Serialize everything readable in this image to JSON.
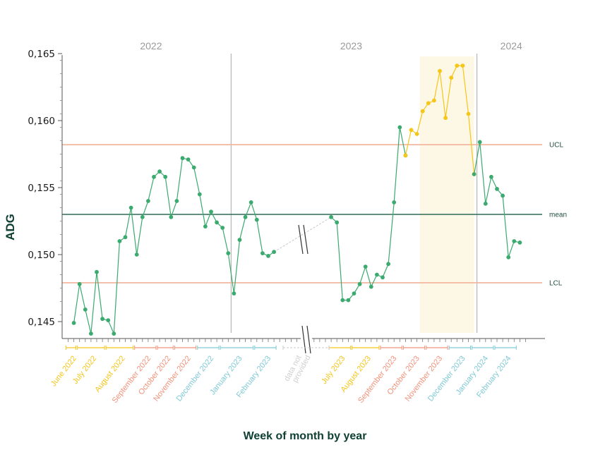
{
  "chart_data": {
    "type": "line",
    "title": "",
    "ylabel": "ADG",
    "xlabel": "Week of month by year",
    "ylim": [
      0.1438,
      0.165
    ],
    "y_ticks": [
      {
        "v": 0.145,
        "label": "0,145"
      },
      {
        "v": 0.15,
        "label": "0,150"
      },
      {
        "v": 0.155,
        "label": "0,155"
      },
      {
        "v": 0.16,
        "label": "0,160"
      },
      {
        "v": 0.165,
        "label": "0,165"
      }
    ],
    "years": [
      {
        "label": "2022",
        "center": 14.5
      },
      {
        "label": "2023",
        "center": 49.5
      },
      {
        "label": "2024",
        "center": 77.5
      }
    ],
    "year_dividers": [
      28.5,
      71.5
    ],
    "highlight_range": [
      61.5,
      71
    ],
    "reference_lines": [
      {
        "name": "UCL",
        "value": 0.1582,
        "color": "#f2b29a"
      },
      {
        "name": "mean",
        "value": 0.153,
        "color": "#2e6a55"
      },
      {
        "name": "LCL",
        "value": 0.1479,
        "color": "#f2b29a"
      }
    ],
    "gap": {
      "label": "data not provided",
      "from": 36,
      "to": 46
    },
    "months": [
      {
        "label": "June 2022",
        "start": 0,
        "end": 1,
        "color": "#f5c518"
      },
      {
        "label": "July 2022",
        "start": 2,
        "end": 6,
        "color": "#f5c518"
      },
      {
        "label": "August 2022",
        "start": 7,
        "end": 11,
        "color": "#f5c518"
      },
      {
        "label": "September 2022",
        "start": 12,
        "end": 15,
        "color": "#f0927a"
      },
      {
        "label": "October 2022",
        "start": 16,
        "end": 18,
        "color": "#f0927a"
      },
      {
        "label": "November 2022",
        "start": 19,
        "end": 22,
        "color": "#f0927a"
      },
      {
        "label": "December 2022",
        "start": 23,
        "end": 26,
        "color": "#7ec9d6"
      },
      {
        "label": "January 2023",
        "start": 27,
        "end": 32,
        "color": "#7ec9d6"
      },
      {
        "label": "February 2023",
        "start": 33,
        "end": 36,
        "color": "#7ec9d6"
      },
      {
        "label": "July 2023",
        "start": 46,
        "end": 49,
        "color": "#f5c518"
      },
      {
        "label": "August 2023",
        "start": 50,
        "end": 54,
        "color": "#f5c518"
      },
      {
        "label": "September 2023",
        "start": 55,
        "end": 58,
        "color": "#f0927a"
      },
      {
        "label": "October 2023",
        "start": 59,
        "end": 62,
        "color": "#f0927a"
      },
      {
        "label": "November 2023",
        "start": 63,
        "end": 66,
        "color": "#f0927a"
      },
      {
        "label": "December 2023",
        "start": 67,
        "end": 70,
        "color": "#7ec9d6"
      },
      {
        "label": "January 2024",
        "start": 71,
        "end": 74,
        "color": "#7ec9d6"
      },
      {
        "label": "February 2024",
        "start": 75,
        "end": 78,
        "color": "#7ec9d6"
      }
    ],
    "series": [
      {
        "color": "#3aaa6e",
        "points": [
          [
            1,
            0.1449
          ],
          [
            2,
            0.1478
          ],
          [
            3,
            0.1459
          ],
          [
            4,
            0.1441
          ],
          [
            5,
            0.1487
          ],
          [
            6,
            0.1452
          ],
          [
            7,
            0.1451
          ],
          [
            8,
            0.1441
          ],
          [
            9,
            0.151
          ],
          [
            10,
            0.1513
          ],
          [
            11,
            0.1535
          ],
          [
            12,
            0.15
          ],
          [
            13,
            0.1528
          ],
          [
            14,
            0.154
          ],
          [
            15,
            0.1558
          ],
          [
            16,
            0.1562
          ],
          [
            17,
            0.1558
          ],
          [
            18,
            0.1528
          ],
          [
            19,
            0.154
          ],
          [
            20,
            0.1572
          ],
          [
            21,
            0.1571
          ],
          [
            22,
            0.1565
          ],
          [
            23,
            0.1545
          ],
          [
            24,
            0.1521
          ],
          [
            25,
            0.1532
          ],
          [
            26,
            0.1524
          ],
          [
            27,
            0.152
          ],
          [
            28,
            0.1501
          ],
          [
            29,
            0.1471
          ],
          [
            30,
            0.1511
          ],
          [
            31,
            0.1528
          ],
          [
            32,
            0.1539
          ],
          [
            33,
            0.1526
          ],
          [
            34,
            0.1501
          ],
          [
            35,
            0.1499
          ],
          [
            36,
            0.1502
          ],
          [
            46,
            0.1528
          ],
          [
            47,
            0.1524
          ],
          [
            48,
            0.1466
          ],
          [
            49,
            0.1466
          ],
          [
            50,
            0.1471
          ],
          [
            51,
            0.1478
          ],
          [
            52,
            0.1491
          ],
          [
            53,
            0.1476
          ],
          [
            54,
            0.1485
          ],
          [
            55,
            0.1483
          ],
          [
            56,
            0.1493
          ],
          [
            57,
            0.1539
          ],
          [
            58,
            0.1595
          ],
          [
            59,
            0.1574
          ]
        ]
      },
      {
        "color": "#f5c518",
        "points": [
          [
            59,
            0.1574
          ],
          [
            60,
            0.1593
          ],
          [
            61,
            0.159
          ],
          [
            62,
            0.1607
          ],
          [
            63,
            0.1613
          ],
          [
            64,
            0.1615
          ],
          [
            65,
            0.1637
          ],
          [
            66,
            0.1602
          ],
          [
            67,
            0.1632
          ],
          [
            68,
            0.1641
          ],
          [
            69,
            0.1641
          ],
          [
            70,
            0.1605
          ],
          [
            71,
            0.156
          ]
        ]
      },
      {
        "color": "#3aaa6e",
        "points": [
          [
            71,
            0.156
          ],
          [
            72,
            0.1584
          ],
          [
            73,
            0.1538
          ],
          [
            74,
            0.1558
          ],
          [
            75,
            0.1549
          ],
          [
            76,
            0.1544
          ],
          [
            77,
            0.1498
          ],
          [
            78,
            0.151
          ],
          [
            79,
            0.1509
          ]
        ]
      }
    ]
  }
}
